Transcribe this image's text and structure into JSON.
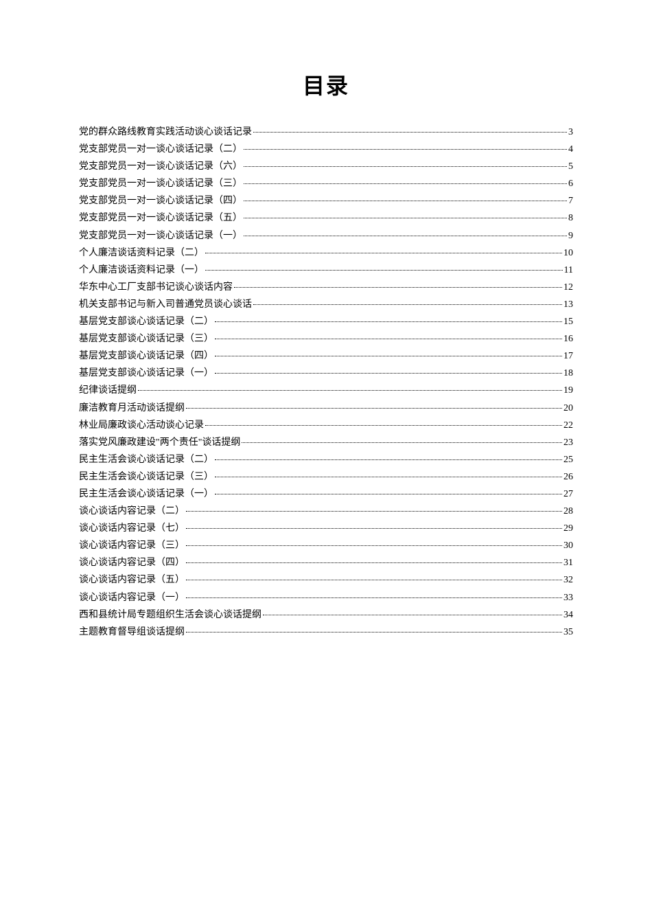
{
  "document": {
    "title": "目录",
    "title_fontsize": 32,
    "entry_fontsize": 14,
    "text_color": "#000000",
    "background_color": "#ffffff",
    "entries": [
      {
        "title": "党的群众路线教育实践活动谈心谈话记录",
        "page": "3"
      },
      {
        "title": "党支部党员一对一谈心谈话记录（二）",
        "page": "4"
      },
      {
        "title": "党支部党员一对一谈心谈话记录（六）",
        "page": "5"
      },
      {
        "title": "党支部党员一对一谈心谈话记录（三）",
        "page": "6"
      },
      {
        "title": "党支部党员一对一谈心谈话记录（四）",
        "page": "7"
      },
      {
        "title": "党支部党员一对一谈心谈话记录（五）",
        "page": "8"
      },
      {
        "title": "党支部党员一对一谈心谈话记录（一）",
        "page": "9"
      },
      {
        "title": "个人廉洁谈话资料记录（二）",
        "page": "10"
      },
      {
        "title": "个人廉洁谈话资料记录（一）",
        "page": "11"
      },
      {
        "title": "华东中心工厂支部书记谈心谈话内容",
        "page": "12"
      },
      {
        "title": "机关支部书记与新入司普通党员谈心谈话",
        "page": "13"
      },
      {
        "title": "基层党支部谈心谈话记录（二）",
        "page": "15"
      },
      {
        "title": "基层党支部谈心谈话记录（三）",
        "page": "16"
      },
      {
        "title": "基层党支部谈心谈话记录（四）",
        "page": "17"
      },
      {
        "title": "基层党支部谈心谈话记录（一）",
        "page": "18"
      },
      {
        "title": "纪律谈话提纲",
        "page": "19"
      },
      {
        "title": "廉洁教育月活动谈话提纲",
        "page": "20"
      },
      {
        "title": "林业局廉政谈心活动谈心记录",
        "page": "22"
      },
      {
        "title": "落实党风廉政建设\"两个责任\"谈话提纲",
        "page": "23"
      },
      {
        "title": "民主生活会谈心谈话记录（二）",
        "page": "25"
      },
      {
        "title": "民主生活会谈心谈话记录（三）",
        "page": "26"
      },
      {
        "title": "民主生活会谈心谈话记录（一）",
        "page": "27"
      },
      {
        "title": "谈心谈话内容记录（二）",
        "page": "28"
      },
      {
        "title": "谈心谈话内容记录（七）",
        "page": "29"
      },
      {
        "title": "谈心谈话内容记录（三）",
        "page": "30"
      },
      {
        "title": "谈心谈话内容记录（四）",
        "page": "31"
      },
      {
        "title": "谈心谈话内容记录（五）",
        "page": "32"
      },
      {
        "title": "谈心谈话内容记录（一）",
        "page": "33"
      },
      {
        "title": "西和县统计局专题组织生活会谈心谈话提纲",
        "page": "34"
      },
      {
        "title": "主题教育督导组谈话提纲",
        "page": "35"
      }
    ]
  }
}
